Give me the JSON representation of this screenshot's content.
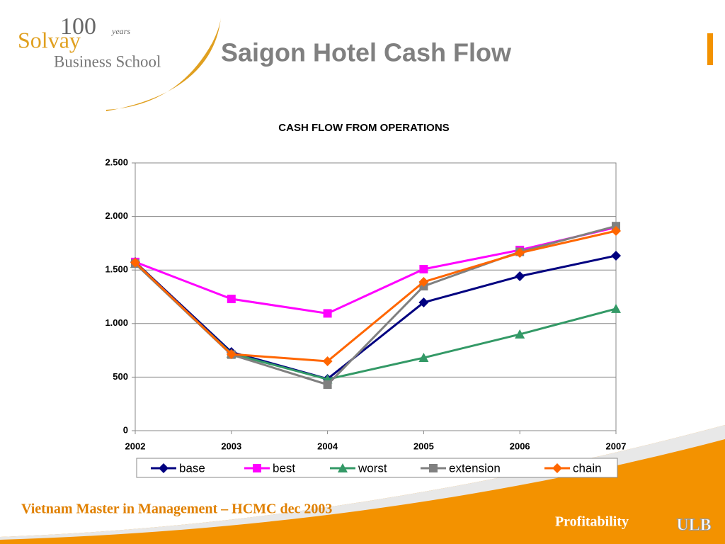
{
  "slide": {
    "title": "Saigon Hotel Cash Flow",
    "logo": {
      "hundred": "100",
      "years": "years",
      "name": "Solvay",
      "school": "Business School"
    },
    "footer": "Vietnam Master in Management – HCMC dec 2003",
    "section": "Profitability",
    "university": "ULB"
  },
  "chart_data": {
    "type": "line",
    "title": "CASH FLOW FROM OPERATIONS",
    "categories": [
      "2002",
      "2003",
      "2004",
      "2005",
      "2006",
      "2007"
    ],
    "series": [
      {
        "name": "base",
        "color": "#000080",
        "marker": "diamond",
        "values": [
          1574,
          734,
          483,
          1197,
          1442,
          1634
        ]
      },
      {
        "name": "best",
        "color": "#ff00ff",
        "marker": "square",
        "values": [
          1575,
          1230,
          1095,
          1508,
          1687,
          1898
        ]
      },
      {
        "name": "worst",
        "color": "#339966",
        "marker": "triangle",
        "values": [
          1560,
          720,
          480,
          681,
          900,
          1138
        ]
      },
      {
        "name": "extension",
        "color": "#808080",
        "marker": "square",
        "values": [
          1560,
          710,
          430,
          1349,
          1670,
          1910
        ]
      },
      {
        "name": "chain",
        "color": "#ff6600",
        "marker": "diamond",
        "values": [
          1570,
          714,
          648,
          1389,
          1660,
          1865
        ]
      }
    ],
    "ylim": [
      0,
      2500
    ],
    "yticks": [
      0,
      500,
      {
        "value": 1000,
        "label": "1.000"
      },
      {
        "value": 1500,
        "label": "1.500"
      },
      {
        "value": 2000,
        "label": "2.000"
      },
      {
        "value": 2500,
        "label": "2.500"
      }
    ],
    "grid": true,
    "legend": "bottom"
  }
}
